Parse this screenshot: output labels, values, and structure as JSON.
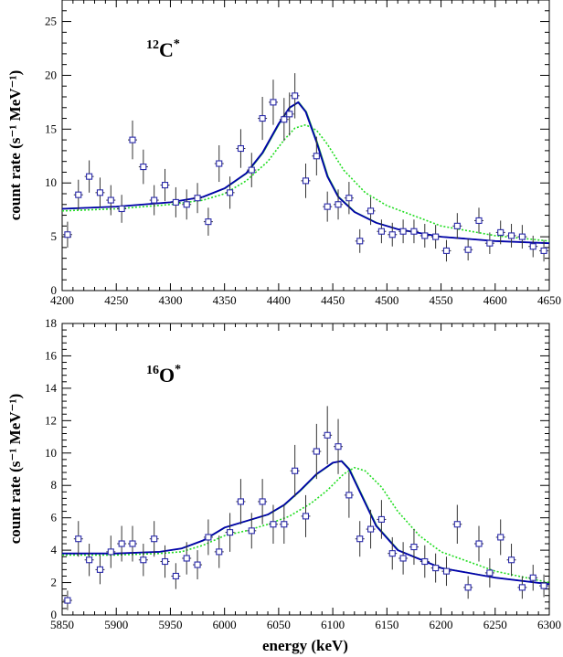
{
  "colors": {
    "points": "#2a2aaa",
    "errorbars": "#333333",
    "fit_solid": "#0000aa",
    "fit_solid_green": "#22aa44",
    "fit_dotted": "#22dd22",
    "frame": "#000000"
  },
  "chart_data": [
    {
      "type": "scatter",
      "label_mass": "12",
      "label_element": "C",
      "label_sup": "*",
      "xlabel": "",
      "ylabel": "count rate (s⁻¹ MeV⁻¹)",
      "xlim": [
        4200,
        4650
      ],
      "ylim": [
        0,
        27
      ],
      "xticks": [
        4200,
        4250,
        4300,
        4350,
        4400,
        4450,
        4500,
        4550,
        4600,
        4650
      ],
      "yticks": [
        0,
        5,
        10,
        15,
        20,
        25
      ],
      "grid": false,
      "series": [
        {
          "kind": "data-points",
          "x": [
            4205,
            4215,
            4225,
            4235,
            4245,
            4255,
            4265,
            4275,
            4285,
            4295,
            4305,
            4315,
            4325,
            4335,
            4345,
            4355,
            4365,
            4375,
            4385,
            4395,
            4405,
            4410,
            4415,
            4425,
            4435,
            4445,
            4455,
            4465,
            4475,
            4485,
            4495,
            4505,
            4515,
            4525,
            4535,
            4545,
            4555,
            4565,
            4575,
            4585,
            4595,
            4605,
            4615,
            4625,
            4635,
            4645
          ],
          "y": [
            5.2,
            8.9,
            10.6,
            9.1,
            8.4,
            7.6,
            14.0,
            11.5,
            8.4,
            9.8,
            8.2,
            8.0,
            8.6,
            6.4,
            11.8,
            9.1,
            13.2,
            11.2,
            16.0,
            17.5,
            15.9,
            16.4,
            18.1,
            10.2,
            12.5,
            7.8,
            8.0,
            8.6,
            4.6,
            7.4,
            5.5,
            5.2,
            5.5,
            5.5,
            5.1,
            5.0,
            3.7,
            6.0,
            3.8,
            6.5,
            4.4,
            5.4,
            5.1,
            5.0,
            4.1,
            3.7
          ],
          "err": [
            1.2,
            1.4,
            1.5,
            1.4,
            1.4,
            1.3,
            1.8,
            1.6,
            1.4,
            1.5,
            1.4,
            1.4,
            1.4,
            1.3,
            1.7,
            1.5,
            1.8,
            1.6,
            2.0,
            2.1,
            2.0,
            2.0,
            2.1,
            1.6,
            1.8,
            1.4,
            1.4,
            1.5,
            1.1,
            1.3,
            1.1,
            1.1,
            1.1,
            1.1,
            1.1,
            1.1,
            1.0,
            1.2,
            1.0,
            1.2,
            1.0,
            1.1,
            1.1,
            1.1,
            1.0,
            1.0
          ]
        },
        {
          "kind": "fit-solid",
          "x": [
            4200,
            4250,
            4300,
            4330,
            4350,
            4370,
            4385,
            4400,
            4410,
            4418,
            4425,
            4435,
            4445,
            4455,
            4470,
            4490,
            4510,
            4550,
            4600,
            4650
          ],
          "y": [
            7.6,
            7.8,
            8.2,
            8.7,
            9.5,
            10.9,
            12.8,
            15.5,
            17.0,
            17.5,
            16.6,
            13.8,
            10.6,
            8.7,
            7.3,
            6.3,
            5.7,
            5.0,
            4.6,
            4.4
          ]
        },
        {
          "kind": "fit-dotted",
          "x": [
            4200,
            4250,
            4300,
            4330,
            4350,
            4370,
            4390,
            4405,
            4415,
            4425,
            4435,
            4445,
            4460,
            4480,
            4500,
            4550,
            4600,
            4650
          ],
          "y": [
            7.4,
            7.6,
            8.0,
            8.4,
            9.0,
            10.2,
            12.0,
            14.0,
            15.1,
            15.4,
            14.9,
            13.6,
            11.2,
            9.1,
            7.9,
            6.0,
            5.1,
            4.6
          ]
        }
      ]
    },
    {
      "type": "scatter",
      "label_mass": "16",
      "label_element": "O",
      "label_sup": "*",
      "xlabel": "energy (keV)",
      "ylabel": "count rate (s⁻¹ MeV⁻¹)",
      "xlim": [
        5850,
        6300
      ],
      "ylim": [
        0,
        18
      ],
      "xticks": [
        5850,
        5900,
        5950,
        6000,
        6050,
        6100,
        6150,
        6200,
        6250,
        6300
      ],
      "yticks": [
        0,
        2,
        4,
        6,
        8,
        10,
        12,
        14,
        16,
        18
      ],
      "grid": false,
      "series": [
        {
          "kind": "data-points",
          "x": [
            5855,
            5865,
            5875,
            5885,
            5895,
            5905,
            5915,
            5925,
            5935,
            5945,
            5955,
            5965,
            5975,
            5985,
            5995,
            6005,
            6015,
            6025,
            6035,
            6045,
            6055,
            6065,
            6075,
            6085,
            6095,
            6105,
            6115,
            6125,
            6135,
            6145,
            6155,
            6165,
            6175,
            6185,
            6195,
            6205,
            6215,
            6225,
            6235,
            6245,
            6255,
            6265,
            6275,
            6285,
            6295
          ],
          "y": [
            0.9,
            4.7,
            3.4,
            2.8,
            3.9,
            4.4,
            4.4,
            3.4,
            4.7,
            3.3,
            2.4,
            3.5,
            3.1,
            4.8,
            3.9,
            5.1,
            7.0,
            5.2,
            7.0,
            5.6,
            5.6,
            8.9,
            6.1,
            10.1,
            11.1,
            10.4,
            7.4,
            4.7,
            5.3,
            5.9,
            3.8,
            3.5,
            4.2,
            3.3,
            2.9,
            2.7,
            5.6,
            1.7,
            4.4,
            2.6,
            4.8,
            3.4,
            1.7,
            2.3,
            1.8
          ],
          "err": [
            0.6,
            1.1,
            1.0,
            0.9,
            1.0,
            1.1,
            1.1,
            1.0,
            1.1,
            1.0,
            0.8,
            1.0,
            0.9,
            1.1,
            1.0,
            1.2,
            1.4,
            1.1,
            1.4,
            1.2,
            1.2,
            1.6,
            1.3,
            1.7,
            1.8,
            1.7,
            1.4,
            1.1,
            1.2,
            1.2,
            1.0,
            1.0,
            1.1,
            1.0,
            0.9,
            0.9,
            1.2,
            0.7,
            1.1,
            0.9,
            1.1,
            1.0,
            0.7,
            0.8,
            0.7
          ]
        },
        {
          "kind": "fit-solid",
          "x": [
            5850,
            5900,
            5940,
            5960,
            5980,
            6000,
            6020,
            6040,
            6055,
            6070,
            6085,
            6100,
            6108,
            6115,
            6125,
            6140,
            6160,
            6200,
            6250,
            6300
          ],
          "y": [
            3.8,
            3.8,
            3.9,
            4.1,
            4.6,
            5.4,
            5.8,
            6.2,
            6.8,
            7.7,
            8.7,
            9.4,
            9.5,
            9.0,
            7.6,
            5.5,
            4.0,
            2.9,
            2.3,
            1.9
          ]
        },
        {
          "kind": "fit-dotted",
          "x": [
            5850,
            5900,
            5940,
            5960,
            5980,
            6000,
            6020,
            6040,
            6060,
            6080,
            6095,
            6110,
            6120,
            6130,
            6145,
            6160,
            6180,
            6200,
            6250,
            6300
          ],
          "y": [
            3.7,
            3.7,
            3.8,
            3.9,
            4.3,
            4.9,
            5.2,
            5.6,
            6.1,
            6.9,
            7.7,
            8.7,
            9.1,
            8.9,
            7.9,
            6.4,
            4.9,
            3.9,
            2.7,
            2.0
          ]
        }
      ]
    }
  ]
}
